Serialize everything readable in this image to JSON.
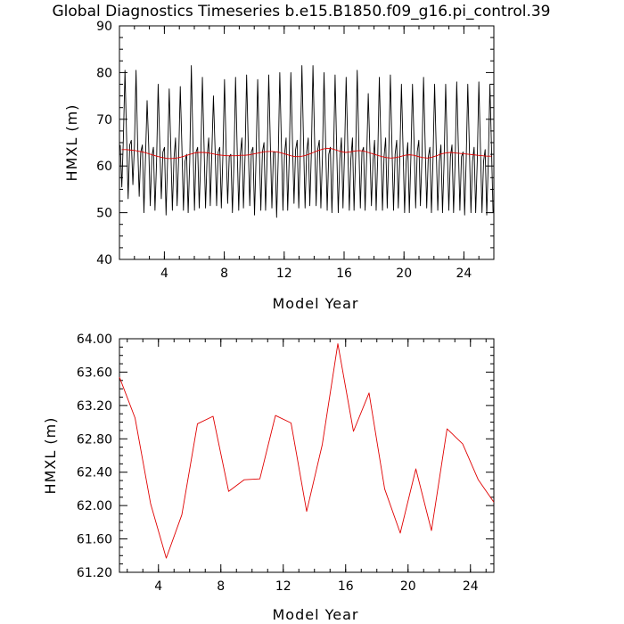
{
  "title": "Global Diagnostics Timeseries b.e15.B1850.f09_g16.pi_control.39",
  "chart_data": [
    {
      "type": "line",
      "xlabel": "Model Year",
      "ylabel": "HMXL (m)",
      "xlim": [
        1,
        26
      ],
      "ylim": [
        40,
        90
      ],
      "xticks": [
        4,
        8,
        12,
        16,
        20,
        24
      ],
      "xtick_labels": [
        "4",
        "8",
        "12",
        "16",
        "20",
        "24"
      ],
      "yticks": [
        40,
        50,
        60,
        70,
        80,
        90
      ],
      "ytick_labels": [
        "40",
        "50",
        "60",
        "70",
        "80",
        "90"
      ],
      "grid": false,
      "series": [
        {
          "color": "#000000",
          "values": [
            64.5,
            55.5,
            66.0,
            80.5,
            66.5,
            53.0,
            64.5,
            65.5,
            56.0,
            64.5,
            80.5,
            65.0,
            53.5,
            63.0,
            64.5,
            50.0,
            62.0,
            74.0,
            64.5,
            51.5,
            62.0,
            64.0,
            50.5,
            61.0,
            77.5,
            65.0,
            53.0,
            63.0,
            64.0,
            49.5,
            61.5,
            76.5,
            64.0,
            50.5,
            61.5,
            66.0,
            51.5,
            62.0,
            77.0,
            64.5,
            50.5,
            61.0,
            62.5,
            50.0,
            61.0,
            81.5,
            65.5,
            50.5,
            63.0,
            64.0,
            51.0,
            62.0,
            79.0,
            65.0,
            51.0,
            62.0,
            66.0,
            51.5,
            63.0,
            75.0,
            64.0,
            51.5,
            63.0,
            64.0,
            51.0,
            62.5,
            78.5,
            64.0,
            52.0,
            62.0,
            62.5,
            50.0,
            61.0,
            79.0,
            64.0,
            50.5,
            62.5,
            66.0,
            51.0,
            62.0,
            79.5,
            65.0,
            51.5,
            63.0,
            64.0,
            49.5,
            62.0,
            78.5,
            64.0,
            50.5,
            63.0,
            65.0,
            50.5,
            62.0,
            79.5,
            65.0,
            51.0,
            63.0,
            63.0,
            49.0,
            61.5,
            80.0,
            65.0,
            50.5,
            62.5,
            66.0,
            50.5,
            62.0,
            80.0,
            65.5,
            52.0,
            63.5,
            65.5,
            51.0,
            63.0,
            81.5,
            65.5,
            51.0,
            63.0,
            66.0,
            51.5,
            63.0,
            81.5,
            66.0,
            51.5,
            63.5,
            65.5,
            51.0,
            62.0,
            80.0,
            65.0,
            50.5,
            62.5,
            64.0,
            50.0,
            62.0,
            79.5,
            64.0,
            50.0,
            61.5,
            66.0,
            51.0,
            63.0,
            79.0,
            64.5,
            50.5,
            61.5,
            66.0,
            50.5,
            62.0,
            80.5,
            65.0,
            51.0,
            63.0,
            64.0,
            50.5,
            62.0,
            75.5,
            64.0,
            51.5,
            61.0,
            65.5,
            50.5,
            62.0,
            79.0,
            65.0,
            50.5,
            62.0,
            66.0,
            51.0,
            63.0,
            79.5,
            64.0,
            50.5,
            62.5,
            65.5,
            51.0,
            62.0,
            77.5,
            64.0,
            50.0,
            61.0,
            65.0,
            50.0,
            62.0,
            77.5,
            65.0,
            51.0,
            63.0,
            65.5,
            51.5,
            62.0,
            79.0,
            65.0,
            51.0,
            62.0,
            64.0,
            50.0,
            61.5,
            77.5,
            64.0,
            50.5,
            61.0,
            64.5,
            50.0,
            61.0,
            77.5,
            64.0,
            50.5,
            62.0,
            64.5,
            50.0,
            61.0,
            78.0,
            64.5,
            50.5,
            62.0,
            63.0,
            49.5,
            61.5,
            77.5,
            64.0,
            50.0,
            61.0,
            64.0,
            50.0,
            61.0,
            78.0,
            64.0,
            50.0,
            61.0,
            63.5,
            49.5,
            61.0,
            77.5,
            64.0,
            50.0
          ]
        },
        {
          "color": "#e00000",
          "values": [
            63.5,
            63.5,
            63.4,
            63.3,
            63.1,
            62.9,
            62.6,
            62.3,
            62.0,
            61.8,
            61.6,
            61.6,
            61.7,
            61.9,
            62.2,
            62.5,
            62.8,
            62.9,
            62.9,
            62.8,
            62.6,
            62.4,
            62.3,
            62.2,
            62.2,
            62.2,
            62.3,
            62.3,
            62.4,
            62.6,
            62.8,
            63.0,
            63.1,
            63.1,
            63.0,
            62.8,
            62.5,
            62.2,
            62.0,
            62.0,
            62.2,
            62.5,
            62.9,
            63.3,
            63.6,
            63.8,
            63.7,
            63.4,
            63.1,
            62.9,
            63.0,
            63.2,
            63.3,
            63.2,
            62.9,
            62.6,
            62.3,
            62.0,
            61.8,
            61.7,
            61.8,
            62.0,
            62.3,
            62.4,
            62.3,
            62.0,
            61.8,
            61.7,
            61.9,
            62.2,
            62.6,
            62.8,
            62.9,
            62.8,
            62.7,
            62.6,
            62.5,
            62.4,
            62.3,
            62.2,
            62.1,
            62.1
          ]
        }
      ]
    },
    {
      "type": "line",
      "xlabel": "Model Year",
      "ylabel": "HMXL (m)",
      "xlim": [
        1.5,
        25.5
      ],
      "ylim": [
        61.2,
        64.0
      ],
      "xticks": [
        4,
        8,
        12,
        16,
        20,
        24
      ],
      "xtick_labels": [
        "4",
        "8",
        "12",
        "16",
        "20",
        "24"
      ],
      "yticks": [
        61.2,
        61.6,
        62.0,
        62.4,
        62.8,
        63.2,
        63.6,
        64.0
      ],
      "ytick_labels": [
        "61.20",
        "61.60",
        "62.00",
        "62.40",
        "62.80",
        "63.20",
        "63.60",
        "64.00"
      ],
      "grid": false,
      "series": [
        {
          "color": "#e00000",
          "x": [
            1.5,
            2.5,
            3.5,
            4.5,
            5.5,
            6.5,
            7.5,
            8.5,
            9.5,
            10.5,
            11.5,
            12.5,
            13.5,
            14.5,
            15.5,
            16.5,
            17.5,
            18.5,
            19.5,
            20.5,
            21.5,
            22.5,
            23.5,
            24.5,
            25.5
          ],
          "values": [
            63.54,
            63.05,
            62.02,
            61.37,
            61.89,
            62.98,
            63.07,
            62.17,
            62.31,
            62.32,
            63.08,
            62.99,
            61.93,
            62.73,
            63.94,
            62.89,
            63.35,
            62.2,
            61.67,
            62.44,
            61.7,
            62.92,
            62.74,
            62.31,
            62.04
          ]
        }
      ]
    }
  ]
}
